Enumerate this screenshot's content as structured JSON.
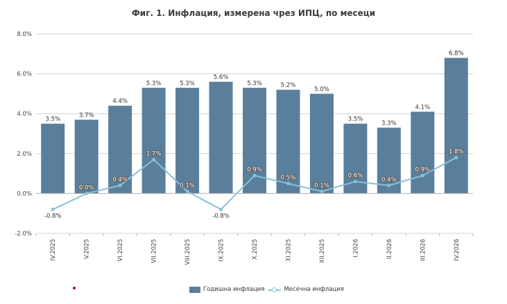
{
  "chart_data": {
    "type": "bar",
    "title": "Фиг. 1. Инфлация, измерена чрез ИПЦ, по месеци",
    "categories": [
      "IV.2025",
      "V.2025",
      "VI.2025",
      "VII.2025",
      "VIII.2025",
      "IX.2025",
      "X.2025",
      "XI.2025",
      "XII.2025",
      "I.2026",
      "II.2026",
      "III.2026",
      "IV.2026"
    ],
    "series": [
      {
        "name": "Годишна инфлация",
        "type": "bar",
        "values": [
          3.5,
          3.7,
          4.4,
          5.3,
          5.3,
          5.6,
          5.3,
          5.2,
          5.0,
          3.5,
          3.3,
          4.1,
          6.8
        ],
        "labels": [
          "3.5%",
          "3.7%",
          "4.4%",
          "5.3%",
          "5.3%",
          "5.6%",
          "5.3%",
          "5.2%",
          "5.0%",
          "3.5%",
          "3.3%",
          "4.1%",
          "6.8%"
        ],
        "color": "#5a7f9c"
      },
      {
        "name": "Месечна инфлация",
        "type": "line",
        "values": [
          -0.8,
          0.0,
          0.4,
          1.7,
          0.1,
          -0.8,
          0.9,
          0.5,
          0.1,
          0.6,
          0.4,
          0.9,
          1.8
        ],
        "labels": [
          "-0.8%",
          "0.0%",
          "0.4%",
          "1.7%",
          "0.1%",
          "-0.8%",
          "0.9%",
          "0.5%",
          "0.1%",
          "0.6%",
          "0.4%",
          "0.9%",
          "1.8%"
        ],
        "color": "#86c1da"
      }
    ],
    "yticks": [
      -2.0,
      0.0,
      2.0,
      4.0,
      6.0,
      8.0
    ],
    "ytick_labels": [
      "-2.0%",
      "0.0%",
      "2.0%",
      "4.0%",
      "6.0%",
      "8.0%"
    ],
    "ylim": [
      -2.0,
      8.0
    ],
    "grid": true,
    "legend": "bottom-center"
  }
}
